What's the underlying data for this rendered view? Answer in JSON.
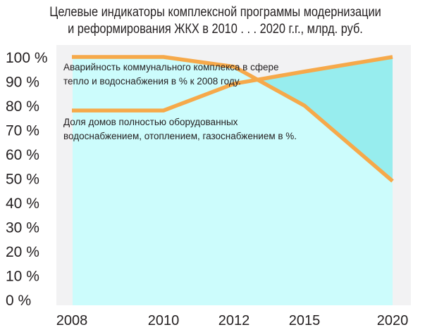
{
  "chart_data": {
    "type": "line",
    "title_lines": [
      "Целевые индикаторы комплексной программы модернизации",
      "и реформирования ЖКХ в 2010 . . . 2020 г.г., млрд. руб."
    ],
    "categories": [
      "2008",
      "2010",
      "2012",
      "2015",
      "2020"
    ],
    "y_tick_labels": [
      "100 %",
      "90 %",
      "80 %",
      "70 %",
      "60 %",
      "50 %",
      "40 %",
      "30 %",
      "20 %",
      "10 %",
      "0 %"
    ],
    "ylim": [
      0,
      100
    ],
    "series": [
      {
        "annotation": [
          "Аварийность коммунального комплекса в сфере",
          "тепло и водоснабжения в % к 2008 году."
        ],
        "values": [
          100,
          100,
          96,
          80,
          49
        ]
      },
      {
        "annotation": [
          "Доля домов полностью оборудованных",
          "водоснабжением, отоплением, газоснабжением в %."
        ],
        "values": [
          78,
          78,
          89,
          94,
          100
        ]
      }
    ],
    "colors": {
      "line": "#f6a94a",
      "fill": "#ccfcfc",
      "fill_upper": "#97edee",
      "frame": "#f2f2f3",
      "text": "#231f20"
    },
    "grid": false
  }
}
